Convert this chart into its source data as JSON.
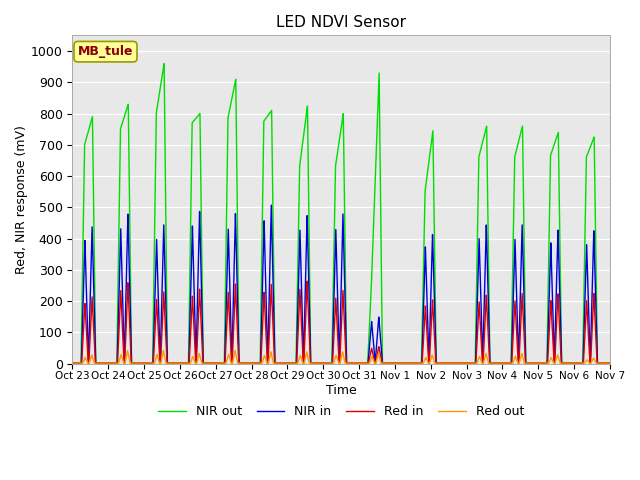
{
  "title": "LED NDVI Sensor",
  "xlabel": "Time",
  "ylabel": "Red, NIR response (mV)",
  "ylim": [
    0,
    1050
  ],
  "annotation_text": "MB_tule",
  "legend_labels": [
    "Red in",
    "NIR in",
    "Red out",
    "NIR out"
  ],
  "line_colors": [
    "#dd0000",
    "#0000dd",
    "#ff9900",
    "#00dd00"
  ],
  "plot_bg": "#e8e8e8",
  "xtick_labels": [
    "Oct 23",
    "Oct 24",
    "Oct 25",
    "Oct 26",
    "Oct 27",
    "Oct 28",
    "Oct 29",
    "Oct 30",
    "Oct 31",
    "Nov 1",
    "Nov 2",
    "Nov 3",
    "Nov 4",
    "Nov 5",
    "Nov 6",
    "Nov 7"
  ],
  "spike_positions": [
    0.45,
    1.45,
    2.45,
    3.45,
    4.45,
    5.45,
    6.45,
    7.45,
    8.45,
    9.95,
    11.45,
    12.45,
    13.45,
    14.45
  ],
  "red_in_peaks": [
    215,
    260,
    230,
    240,
    255,
    255,
    265,
    235,
    55,
    205,
    220,
    225,
    225,
    225
  ],
  "nir_in_peaks": [
    440,
    480,
    445,
    490,
    480,
    510,
    475,
    480,
    150,
    415,
    445,
    445,
    430,
    425
  ],
  "red_out_peaks": [
    28,
    42,
    42,
    33,
    42,
    38,
    38,
    38,
    33,
    28,
    33,
    33,
    28,
    18
  ],
  "nir_out_peaks": [
    790,
    830,
    960,
    800,
    910,
    810,
    825,
    800,
    930,
    745,
    760,
    760,
    740,
    725
  ],
  "nir_out_first": [
    700,
    750,
    800,
    770,
    785,
    775,
    630,
    630,
    240,
    550,
    660,
    660,
    665,
    660
  ]
}
